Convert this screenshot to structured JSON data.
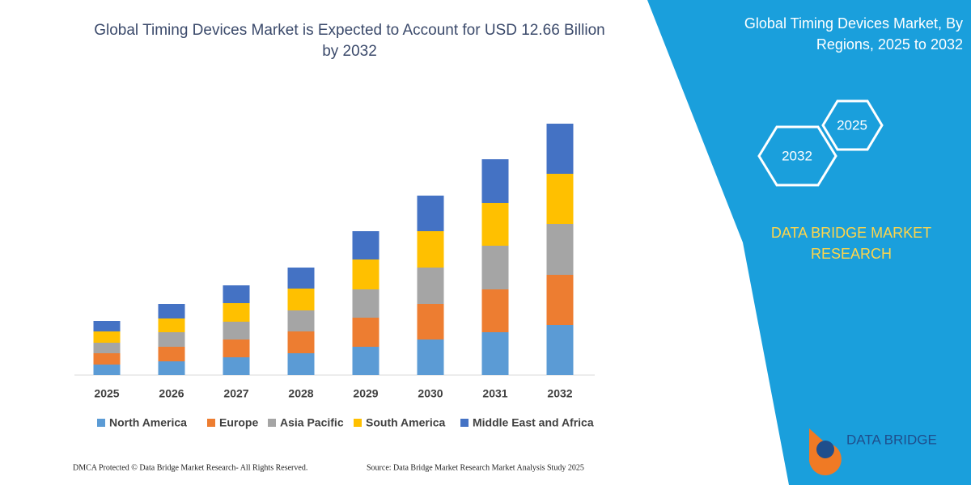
{
  "chart_data": {
    "type": "stacked-bar",
    "title": "Global Timing Devices Market is Expected to Account for USD 12.66 Billion",
    "subtitle": "by 2032",
    "categories": [
      "2025",
      "2026",
      "2027",
      "2028",
      "2029",
      "2030",
      "2031",
      "2032"
    ],
    "series": [
      {
        "name": "North America",
        "color": "#5b9bd5",
        "values": [
          13,
          17,
          22,
          27,
          35,
          44,
          53,
          62
        ]
      },
      {
        "name": "Europe",
        "color": "#ed7d31",
        "values": [
          14,
          18,
          22,
          27,
          36,
          44,
          53,
          62
        ]
      },
      {
        "name": "Asia Pacific",
        "color": "#a5a5a5",
        "values": [
          13,
          18,
          22,
          26,
          35,
          45,
          54,
          63
        ]
      },
      {
        "name": "South America",
        "color": "#ffc000",
        "values": [
          14,
          17,
          23,
          27,
          37,
          45,
          53,
          62
        ]
      },
      {
        "name": "Middle East and Africa",
        "color": "#4472c4",
        "values": [
          13,
          18,
          22,
          26,
          35,
          44,
          54,
          62
        ]
      }
    ],
    "ylim": [
      0,
      320
    ]
  },
  "panel": {
    "title_line1": "Global Timing Devices Market, By",
    "title_line2": "Regions, 2025 to 2032",
    "hex_right": "2025",
    "hex_left": "2032",
    "brand_line1": "DATA BRIDGE MARKET",
    "brand_line2": "RESEARCH",
    "logo": "DATA BRIDGE"
  },
  "footer": {
    "left": "DMCA Protected © Data Bridge Market Research-  All Rights Reserved.",
    "right": "Source: Data Bridge Market Research  Market Analysis Study 2025"
  }
}
